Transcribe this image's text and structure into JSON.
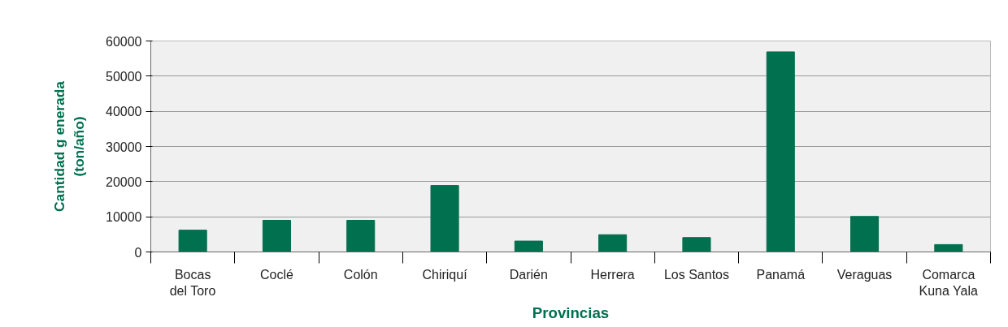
{
  "chart_data": {
    "type": "bar",
    "xlabel": "Provincias",
    "ylabel": "Cantidad g enerada\n(ton/año)",
    "categories": [
      "Bocas\ndel Toro",
      "Coclé",
      "Colón",
      "Chiriquí",
      "Darién",
      "Herrera",
      "Los Santos",
      "Panamá",
      "Veraguas",
      "Comarca\nKuna Yala"
    ],
    "values": [
      6200,
      9000,
      9000,
      18900,
      3100,
      4900,
      4100,
      56900,
      10100,
      2100
    ],
    "color": "#00704f",
    "ylim": [
      0,
      60000
    ],
    "yticks": [
      0,
      10000,
      20000,
      30000,
      40000,
      50000,
      60000
    ],
    "grid": "y"
  }
}
